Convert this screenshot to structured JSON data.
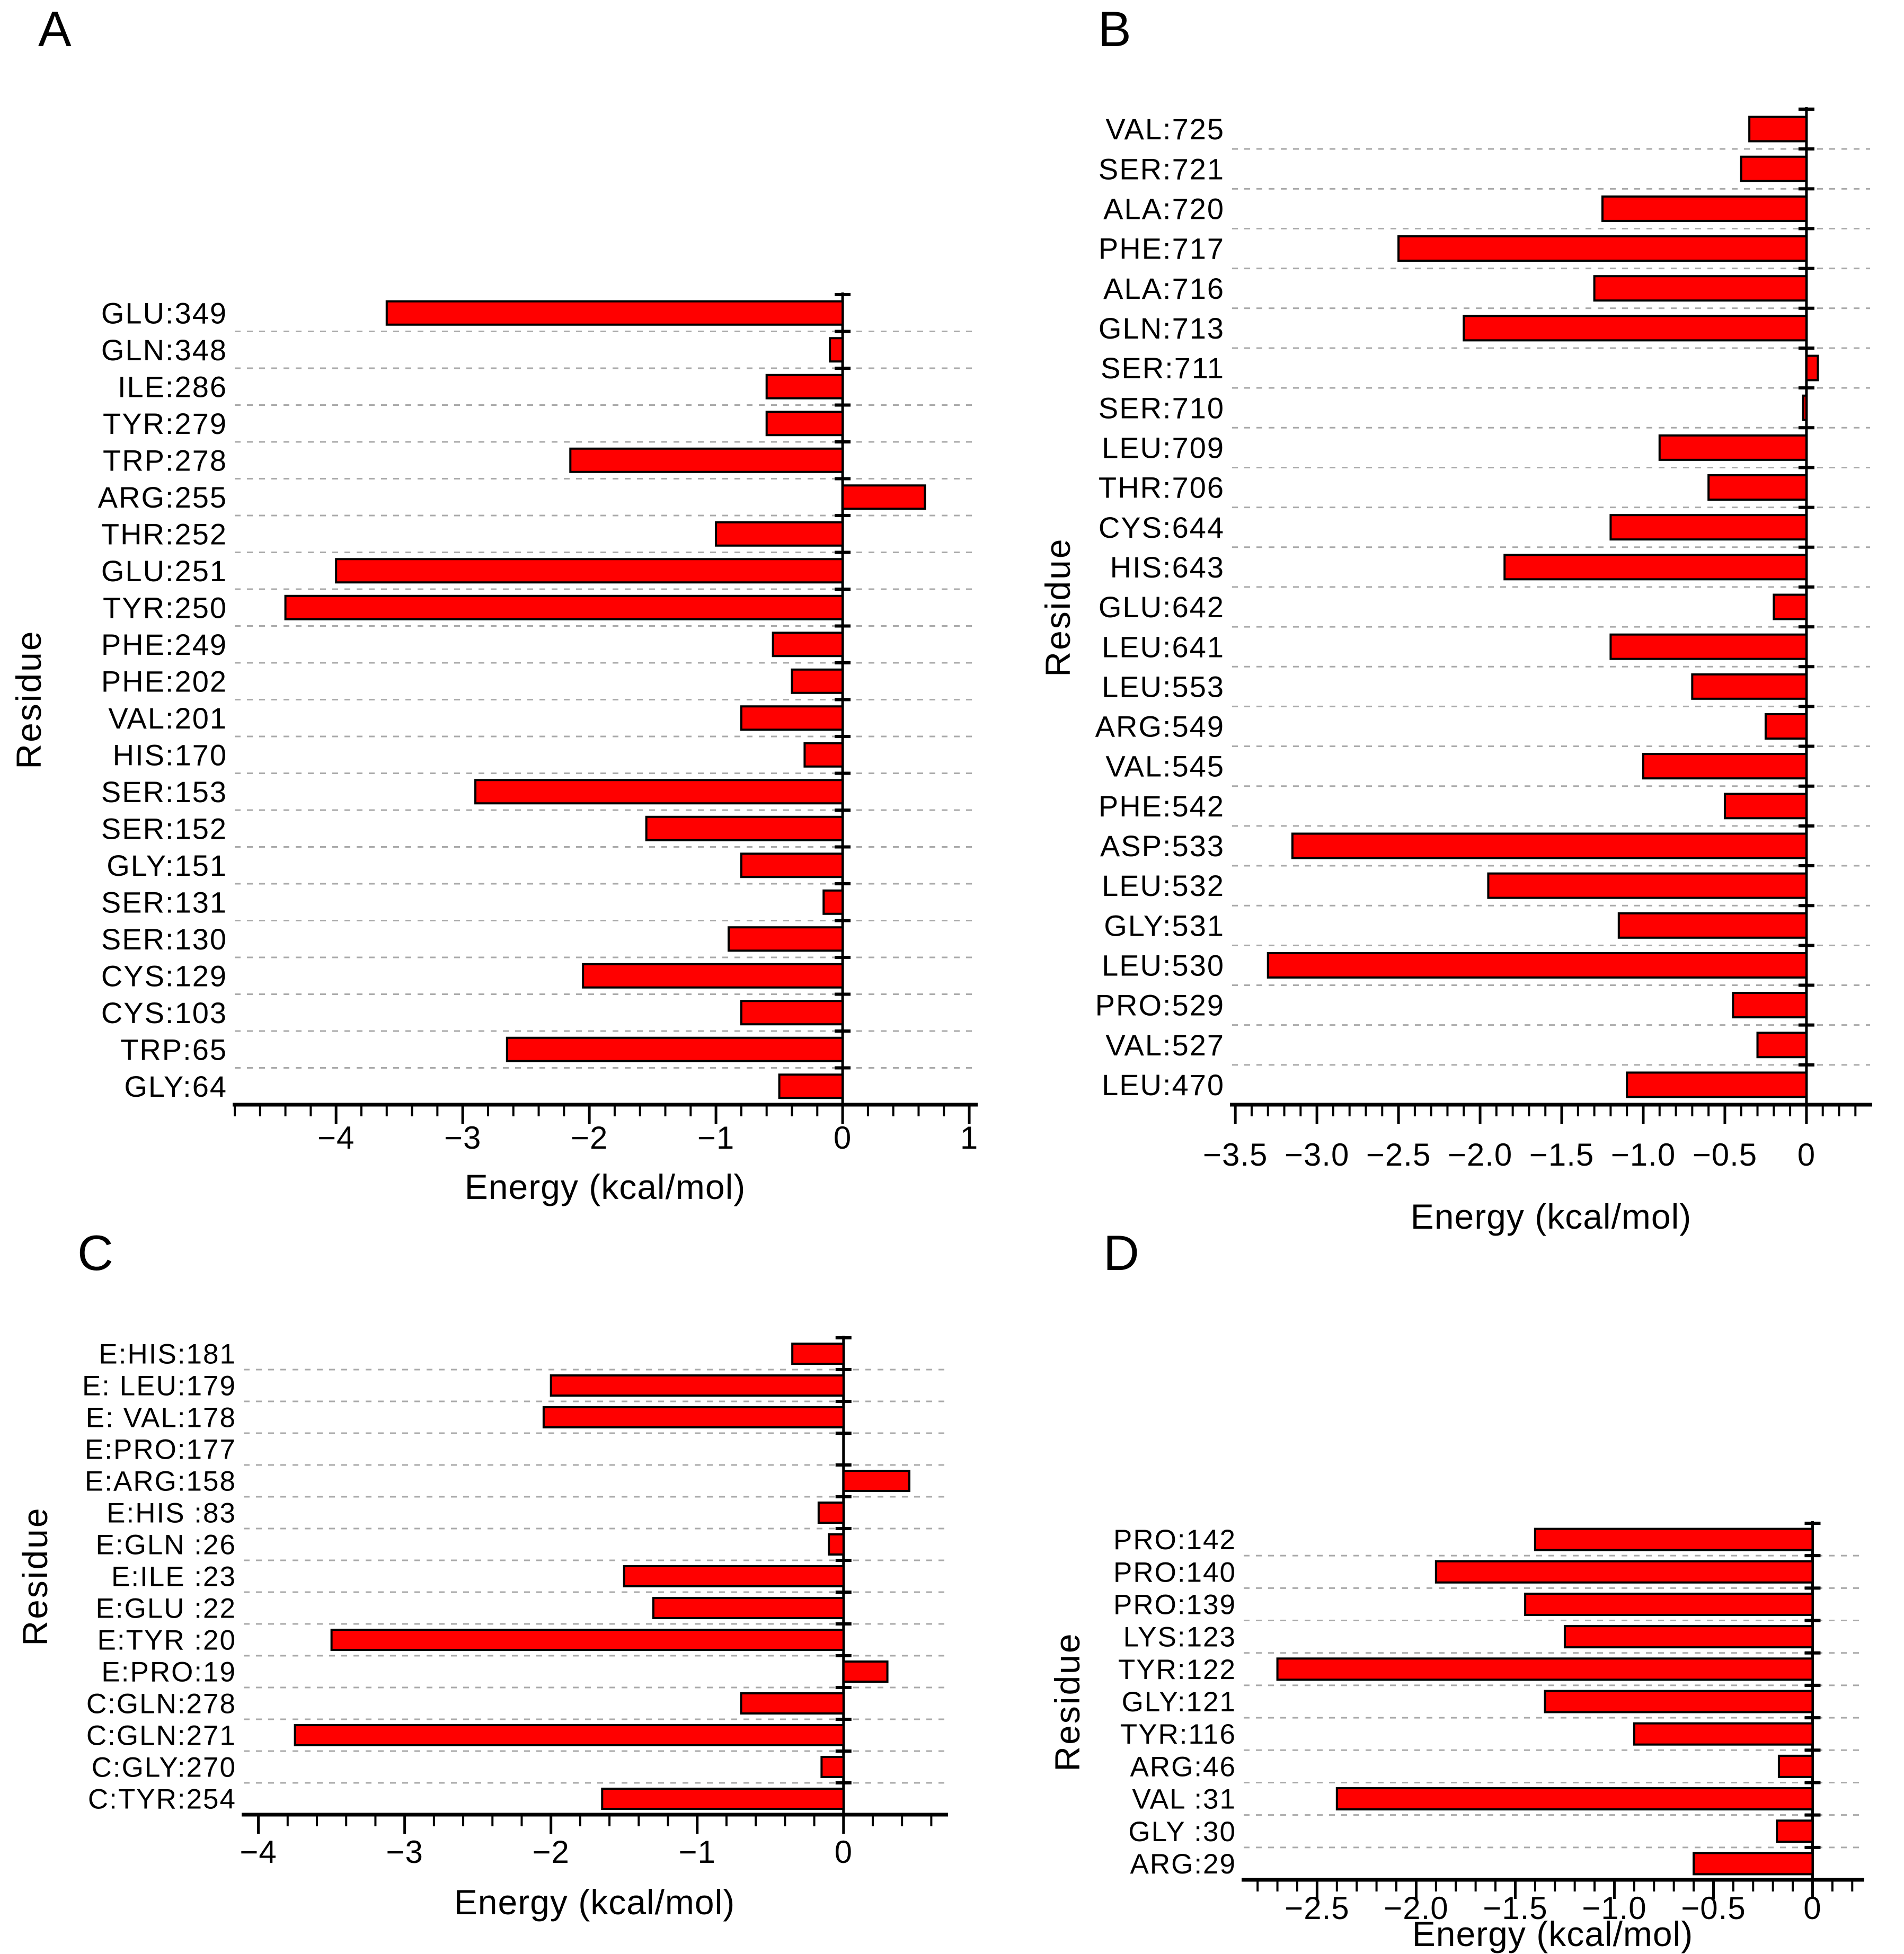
{
  "figure": {
    "background": "#ffffff",
    "bar_color": "#ff0000",
    "bar_border_color": "#000000",
    "grid_color": "#aaaaaa",
    "axis_color": "#000000",
    "text_color": "#000000"
  },
  "chart_data": [
    {
      "id": "A",
      "type": "bar",
      "orientation": "horizontal",
      "panel_label": "A",
      "xlabel": "Energy (kcal/mol)",
      "ylabel": "Residue",
      "xlim": [
        -4.8,
        1.05
      ],
      "minor_tick_step": 0.2,
      "grid": "dashed-horizontal",
      "xticks": [
        {
          "v": -4,
          "label": "−4"
        },
        {
          "v": -3,
          "label": "−3"
        },
        {
          "v": -2,
          "label": "−2"
        },
        {
          "v": -1,
          "label": "−1"
        },
        {
          "v": 0,
          "label": "0"
        },
        {
          "v": 1,
          "label": "1"
        }
      ],
      "categories": [
        "GLU:349",
        "GLN:348",
        "ILE:286",
        "TYR:279",
        "TRP:278",
        "ARG:255",
        "THR:252",
        "GLU:251",
        "TYR:250",
        "PHE:249",
        "PHE:202",
        "VAL:201",
        "HIS:170",
        "SER:153",
        "SER:152",
        "GLY:151",
        "SER:131",
        "SER:130",
        "CYS:129",
        "CYS:103",
        "TRP:65",
        "GLY:64"
      ],
      "values": [
        -3.6,
        -0.1,
        -0.6,
        -0.6,
        -2.15,
        0.65,
        -1.0,
        -4.0,
        -4.4,
        -0.55,
        -0.4,
        -0.8,
        -0.3,
        -2.9,
        -1.55,
        -0.8,
        -0.15,
        -0.9,
        -2.05,
        -0.8,
        -2.65,
        -0.5
      ]
    },
    {
      "id": "B",
      "type": "bar",
      "orientation": "horizontal",
      "panel_label": "B",
      "xlabel": "Energy (kcal/mol)",
      "ylabel": "Residue",
      "xlim": [
        -3.52,
        0.39
      ],
      "minor_tick_step": 0.1,
      "grid": "dashed-horizontal",
      "xticks": [
        {
          "v": -3.5,
          "label": "−3.5"
        },
        {
          "v": -3.0,
          "label": "−3.0"
        },
        {
          "v": -2.5,
          "label": "−2.5"
        },
        {
          "v": -2.0,
          "label": "−2.0"
        },
        {
          "v": -1.5,
          "label": "−1.5"
        },
        {
          "v": -1.0,
          "label": "−1.0"
        },
        {
          "v": -0.5,
          "label": "−0.5"
        },
        {
          "v": 0,
          "label": "0"
        }
      ],
      "categories": [
        "VAL:725",
        "SER:721",
        "ALA:720",
        "PHE:717",
        "ALA:716",
        "GLN:713",
        "SER:711",
        "SER:710",
        "LEU:709",
        "THR:706",
        "CYS:644",
        "HIS:643",
        "GLU:642",
        "LEU:641",
        "LEU:553",
        "ARG:549",
        "VAL:545",
        "PHE:542",
        "ASP:533",
        "LEU:532",
        "GLY:531",
        "LEU:530",
        "PRO:529",
        "VAL:527",
        "LEU:470"
      ],
      "values": [
        -0.35,
        -0.4,
        -1.25,
        -2.5,
        -1.3,
        -2.1,
        0.07,
        -0.02,
        -0.9,
        -0.6,
        -1.2,
        -1.85,
        -0.2,
        -1.2,
        -0.7,
        -0.25,
        -1.0,
        -0.5,
        -3.15,
        -1.95,
        -1.15,
        -3.3,
        -0.45,
        -0.3,
        -1.1
      ]
    },
    {
      "id": "C",
      "type": "bar",
      "orientation": "horizontal",
      "panel_label": "C",
      "xlabel": "Energy (kcal/mol)",
      "ylabel": "Residue",
      "xlim": [
        -4.1,
        0.7
      ],
      "minor_tick_step": 0.2,
      "grid": "dashed-horizontal",
      "xticks": [
        {
          "v": -4,
          "label": "−4"
        },
        {
          "v": -3,
          "label": "−3"
        },
        {
          "v": -2,
          "label": "−2"
        },
        {
          "v": -1,
          "label": "−1"
        },
        {
          "v": 0,
          "label": "0"
        }
      ],
      "categories": [
        "E:HIS:181",
        "E: LEU:179",
        "E: VAL:178",
        "E:PRO:177",
        "E:ARG:158",
        "E:HIS :83",
        "E:GLN :26",
        "E:ILE :23",
        "E:GLU :22",
        "E:TYR :20",
        "E:PRO:19",
        "C:GLN:278",
        "C:GLN:271",
        "C:GLY:270",
        "C:TYR:254"
      ],
      "values": [
        -0.35,
        -2.0,
        -2.05,
        0,
        0.45,
        -0.17,
        -0.1,
        -1.5,
        -1.3,
        -3.5,
        0.3,
        -0.7,
        -3.75,
        -0.15,
        -1.65
      ]
    },
    {
      "id": "D",
      "type": "bar",
      "orientation": "horizontal",
      "panel_label": "D",
      "xlabel": "Energy (kcal/mol)",
      "ylabel": "Residue",
      "xlim": [
        -2.87,
        0.25
      ],
      "minor_tick_step": 0.1,
      "grid": "dashed-horizontal",
      "xticks": [
        {
          "v": -2.5,
          "label": "−2.5"
        },
        {
          "v": -2.0,
          "label": "−2.0"
        },
        {
          "v": -1.5,
          "label": "−1.5"
        },
        {
          "v": -1.0,
          "label": "−1.0"
        },
        {
          "v": -0.5,
          "label": "−0.5"
        },
        {
          "v": 0,
          "label": "0"
        }
      ],
      "categories": [
        "PRO:142",
        "PRO:140",
        "PRO:139",
        "LYS:123",
        "TYR:122",
        "GLY:121",
        "TYR:116",
        "ARG:46",
        "VAL :31",
        "GLY :30",
        "ARG:29"
      ],
      "values": [
        -1.4,
        -1.9,
        -1.45,
        -1.25,
        -2.7,
        -1.35,
        -0.9,
        -0.17,
        -2.4,
        -0.18,
        -0.6
      ]
    }
  ]
}
